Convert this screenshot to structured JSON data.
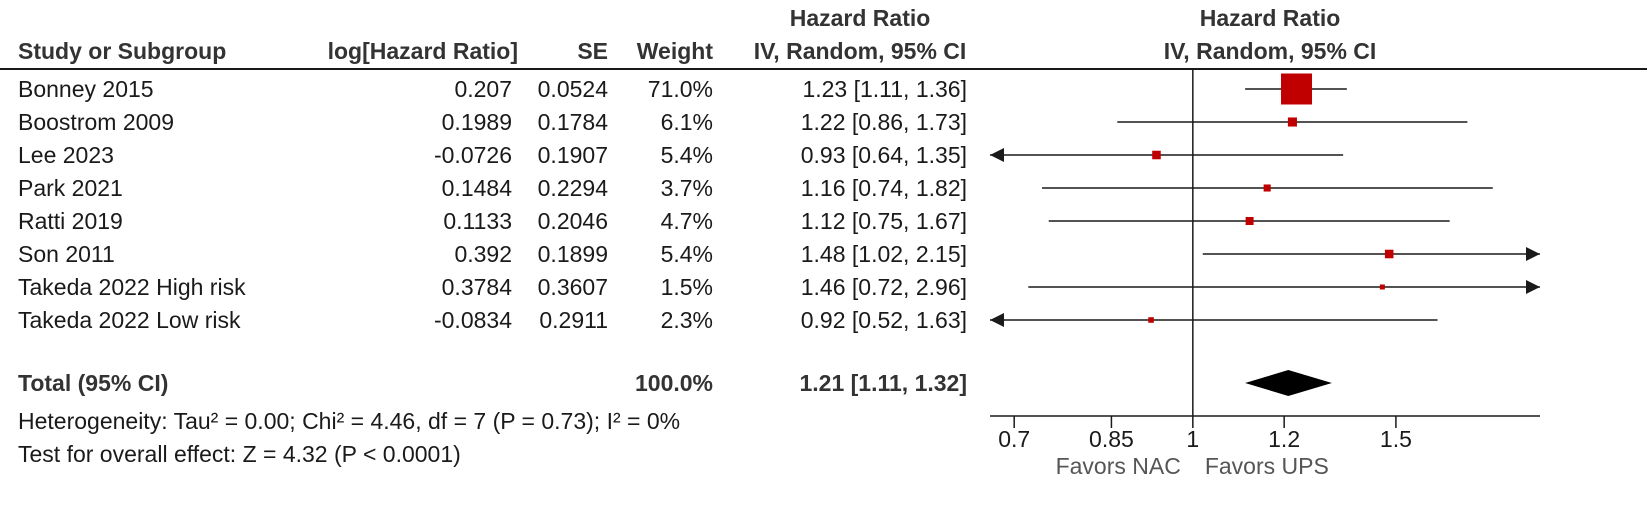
{
  "header": {
    "col_study": "Study or Subgroup",
    "col_loghr": "log[Hazard Ratio]",
    "col_se": "SE",
    "col_weight": "Weight",
    "col_ci_top": "Hazard Ratio",
    "col_ci_bottom": "IV, Random, 95% CI",
    "plot_top": "Hazard Ratio",
    "plot_bottom": "IV, Random, 95% CI"
  },
  "rows": [
    {
      "study": "Bonney 2015",
      "loghr": "0.207",
      "se": "0.0524",
      "weight": "71.0%",
      "ci": "1.23 [1.11, 1.36]"
    },
    {
      "study": "Boostrom 2009",
      "loghr": "0.1989",
      "se": "0.1784",
      "weight": "6.1%",
      "ci": "1.22 [0.86, 1.73]"
    },
    {
      "study": "Lee 2023",
      "loghr": "-0.0726",
      "se": "0.1907",
      "weight": "5.4%",
      "ci": "0.93 [0.64, 1.35]"
    },
    {
      "study": "Park 2021",
      "loghr": "0.1484",
      "se": "0.2294",
      "weight": "3.7%",
      "ci": "1.16 [0.74, 1.82]"
    },
    {
      "study": "Ratti 2019",
      "loghr": "0.1133",
      "se": "0.2046",
      "weight": "4.7%",
      "ci": "1.12 [0.75, 1.67]"
    },
    {
      "study": "Son 2011",
      "loghr": "0.392",
      "se": "0.1899",
      "weight": "5.4%",
      "ci": "1.48 [1.02, 2.15]"
    },
    {
      "study": "Takeda 2022 High risk",
      "loghr": "0.3784",
      "se": "0.3607",
      "weight": "1.5%",
      "ci": "1.46 [0.72, 2.96]"
    },
    {
      "study": "Takeda 2022 Low risk",
      "loghr": "-0.0834",
      "se": "0.2911",
      "weight": "2.3%",
      "ci": "0.92 [0.52, 1.63]"
    }
  ],
  "total": {
    "label": "Total (95% CI)",
    "weight": "100.0%",
    "ci": "1.21 [1.11, 1.32]"
  },
  "heterogeneity": "Heterogeneity: Tau² = 0.00; Chi² = 4.46, df = 7 (P = 0.73); I² = 0%",
  "overall_effect": "Test for overall effect: Z = 4.32 (P < 0.0001)",
  "favors_left": "Favors NAC",
  "favors_right": "Favors UPS",
  "colors": {
    "marker": "#c00000",
    "line": "#1a1a1a"
  },
  "chart_data": {
    "type": "forest",
    "scale": "log",
    "xlim": [
      0.667,
      2.0
    ],
    "ticks": [
      0.7,
      0.85,
      1,
      1.2,
      1.5
    ],
    "tick_labels": [
      "0.7",
      "0.85",
      "1",
      "1.2",
      "1.5"
    ],
    "null_value": 1,
    "studies": [
      {
        "name": "Bonney 2015",
        "hr": 1.23,
        "lo": 1.11,
        "hi": 1.36,
        "weight": 71.0
      },
      {
        "name": "Boostrom 2009",
        "hr": 1.22,
        "lo": 0.86,
        "hi": 1.73,
        "weight": 6.1
      },
      {
        "name": "Lee 2023",
        "hr": 0.93,
        "lo": 0.64,
        "hi": 1.35,
        "weight": 5.4
      },
      {
        "name": "Park 2021",
        "hr": 1.16,
        "lo": 0.74,
        "hi": 1.82,
        "weight": 3.7
      },
      {
        "name": "Ratti 2019",
        "hr": 1.12,
        "lo": 0.75,
        "hi": 1.67,
        "weight": 4.7
      },
      {
        "name": "Son 2011",
        "hr": 1.48,
        "lo": 1.02,
        "hi": 2.15,
        "weight": 5.4
      },
      {
        "name": "Takeda 2022 High risk",
        "hr": 1.46,
        "lo": 0.72,
        "hi": 2.96,
        "weight": 1.5
      },
      {
        "name": "Takeda 2022 Low risk",
        "hr": 0.92,
        "lo": 0.52,
        "hi": 1.63,
        "weight": 2.3
      }
    ],
    "pooled": {
      "hr": 1.21,
      "lo": 1.11,
      "hi": 1.32
    }
  }
}
